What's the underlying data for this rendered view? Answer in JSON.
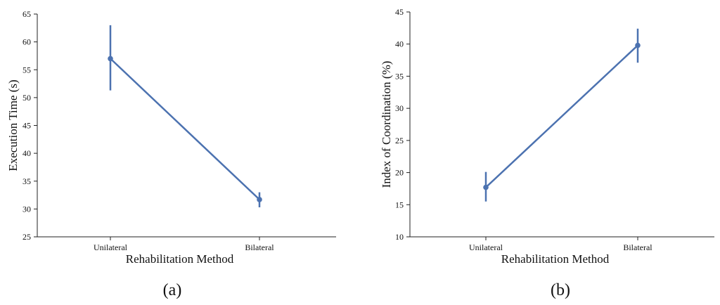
{
  "chart_data": [
    {
      "type": "line",
      "panel_label": "(a)",
      "categories": [
        "Unilateral",
        "Bilateral"
      ],
      "series": [
        {
          "values": [
            57,
            31.7
          ],
          "error_low": [
            51.3,
            30.3
          ],
          "error_high": [
            63,
            33
          ]
        }
      ],
      "xlabel": "Rehabilitation Method",
      "ylabel": "Execution Time (s)",
      "ylim": [
        25,
        65
      ],
      "yticks": [
        25,
        30,
        35,
        40,
        45,
        50,
        55,
        60,
        65
      ],
      "grid": false,
      "color": "#4C72B0"
    },
    {
      "type": "line",
      "panel_label": "(b)",
      "categories": [
        "Unilateral",
        "Bilateral"
      ],
      "series": [
        {
          "values": [
            17.7,
            39.8
          ],
          "error_low": [
            15.5,
            37.1
          ],
          "error_high": [
            20.1,
            42.4
          ]
        }
      ],
      "xlabel": "Rehabilitation Method",
      "ylabel": "Index of Coordination (%)",
      "ylim": [
        10,
        45
      ],
      "yticks": [
        10,
        15,
        20,
        25,
        30,
        35,
        40,
        45
      ],
      "grid": false,
      "color": "#4C72B0"
    }
  ]
}
